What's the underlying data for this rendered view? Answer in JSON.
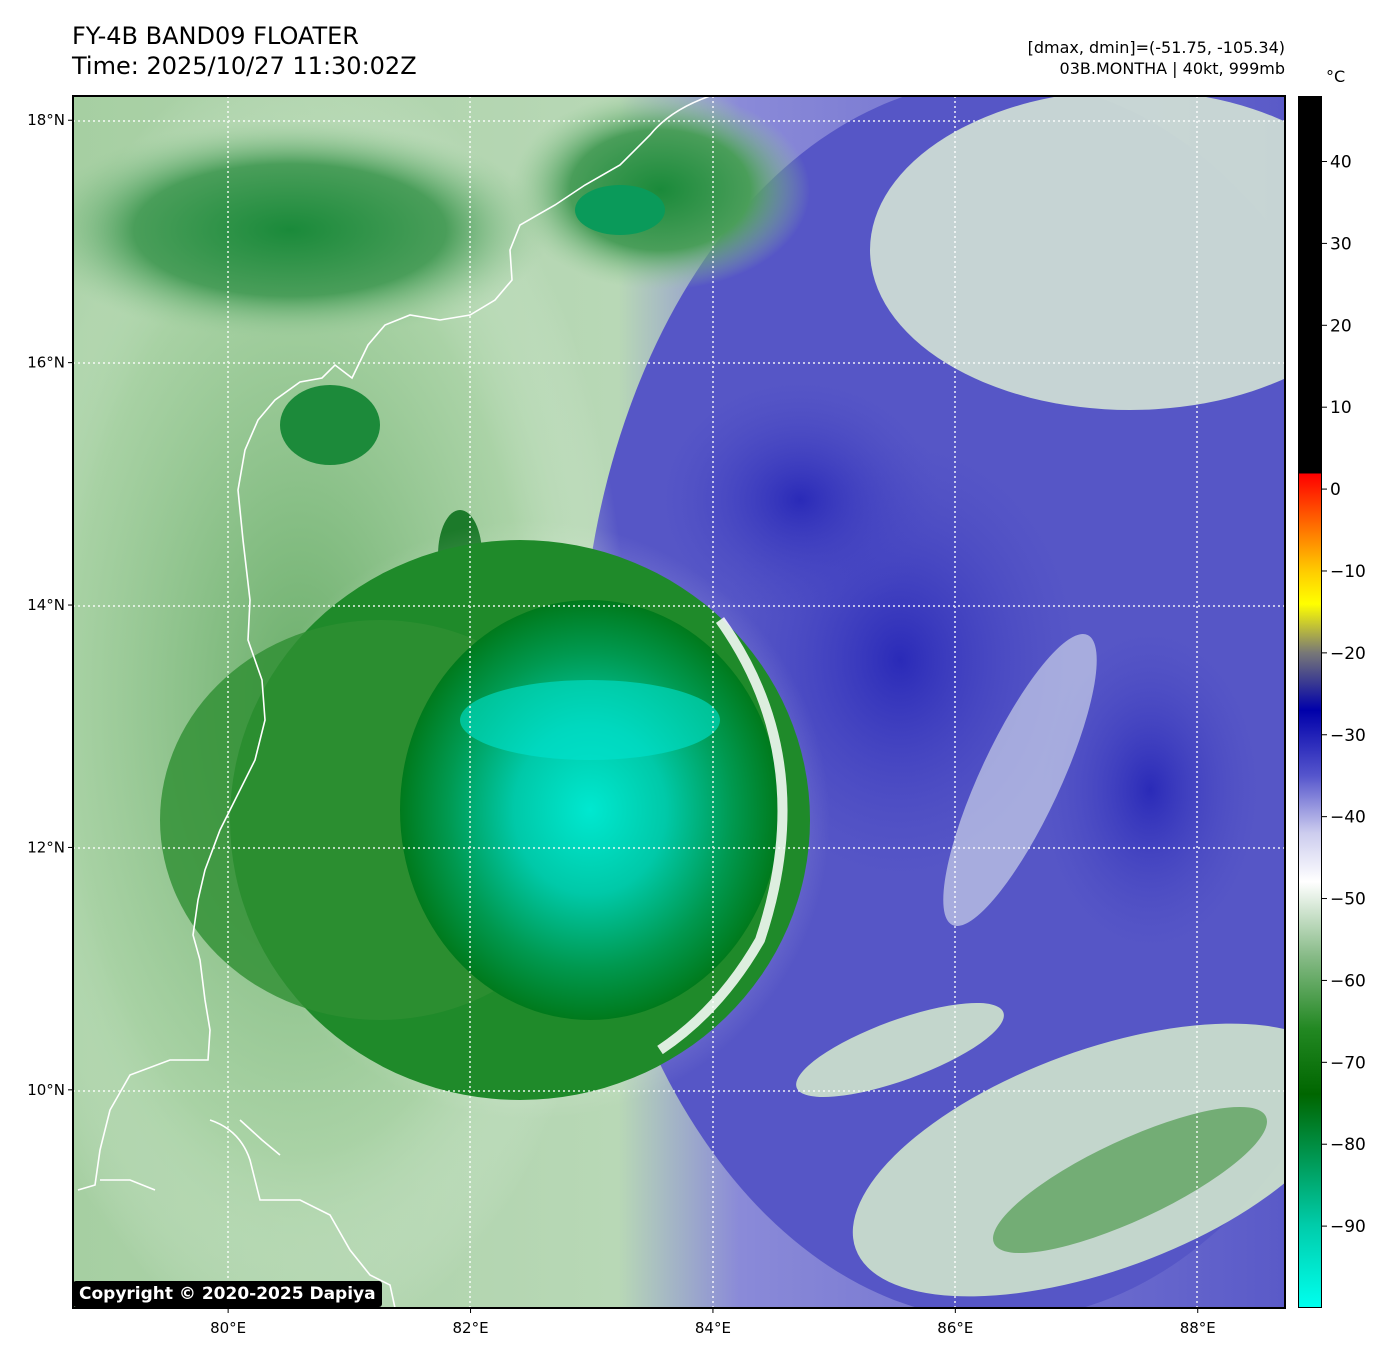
{
  "header": {
    "title": "FY-4B BAND09 FLOATER",
    "time": "Time: 2025/10/27 11:30:02Z",
    "range": "[dmax, dmin]=(-51.75, -105.34)",
    "storm": "03B.MONTHA | 40kt, 999mb"
  },
  "map": {
    "lon_range": [
      78.72,
      88.72
    ],
    "lat_range": [
      8.2,
      18.2
    ],
    "lon_ticks": [
      {
        "value": 80,
        "label": "80°E"
      },
      {
        "value": 82,
        "label": "82°E"
      },
      {
        "value": 84,
        "label": "84°E"
      },
      {
        "value": 86,
        "label": "86°E"
      },
      {
        "value": 88,
        "label": "88°E"
      }
    ],
    "lat_ticks": [
      {
        "value": 18,
        "label": "18°N"
      },
      {
        "value": 16,
        "label": "16°N"
      },
      {
        "value": 14,
        "label": "14°N"
      },
      {
        "value": 12,
        "label": "12°N"
      },
      {
        "value": 10,
        "label": "10°N"
      }
    ],
    "gridlines": "dotted white",
    "coastline_color": "#ffffff",
    "cold_core_center": [
      83.0,
      12.6
    ]
  },
  "colorbar": {
    "unit": "°C",
    "range": [
      -100,
      48
    ],
    "ticks": [
      40,
      30,
      20,
      10,
      0,
      -10,
      -20,
      -30,
      -40,
      -50,
      -60,
      -70,
      -80,
      -90
    ],
    "tick_labels": [
      "40",
      "30",
      "20",
      "10",
      "0",
      "−10",
      "−20",
      "−30",
      "−40",
      "−50",
      "−60",
      "−70",
      "−80",
      "−90"
    ],
    "stops": [
      {
        "value": 48,
        "color": "#000000"
      },
      {
        "value": 2,
        "color": "#000000"
      },
      {
        "value": 1.9,
        "color": "#ff0000"
      },
      {
        "value": -4,
        "color": "#ff6600"
      },
      {
        "value": -10,
        "color": "#ffcc00"
      },
      {
        "value": -14,
        "color": "#ffff00"
      },
      {
        "value": -20,
        "color": "#777777"
      },
      {
        "value": -27,
        "color": "#0000aa"
      },
      {
        "value": -35,
        "color": "#5555cc"
      },
      {
        "value": -42,
        "color": "#ccccee"
      },
      {
        "value": -48,
        "color": "#ffffff"
      },
      {
        "value": -57,
        "color": "#88bb88"
      },
      {
        "value": -66,
        "color": "#228822"
      },
      {
        "value": -74,
        "color": "#006600"
      },
      {
        "value": -82,
        "color": "#009955"
      },
      {
        "value": -90,
        "color": "#00ccaa"
      },
      {
        "value": -100,
        "color": "#00ffee"
      }
    ]
  },
  "footer": {
    "copyright": "Copyright © 2020-2025 Dapiya"
  }
}
